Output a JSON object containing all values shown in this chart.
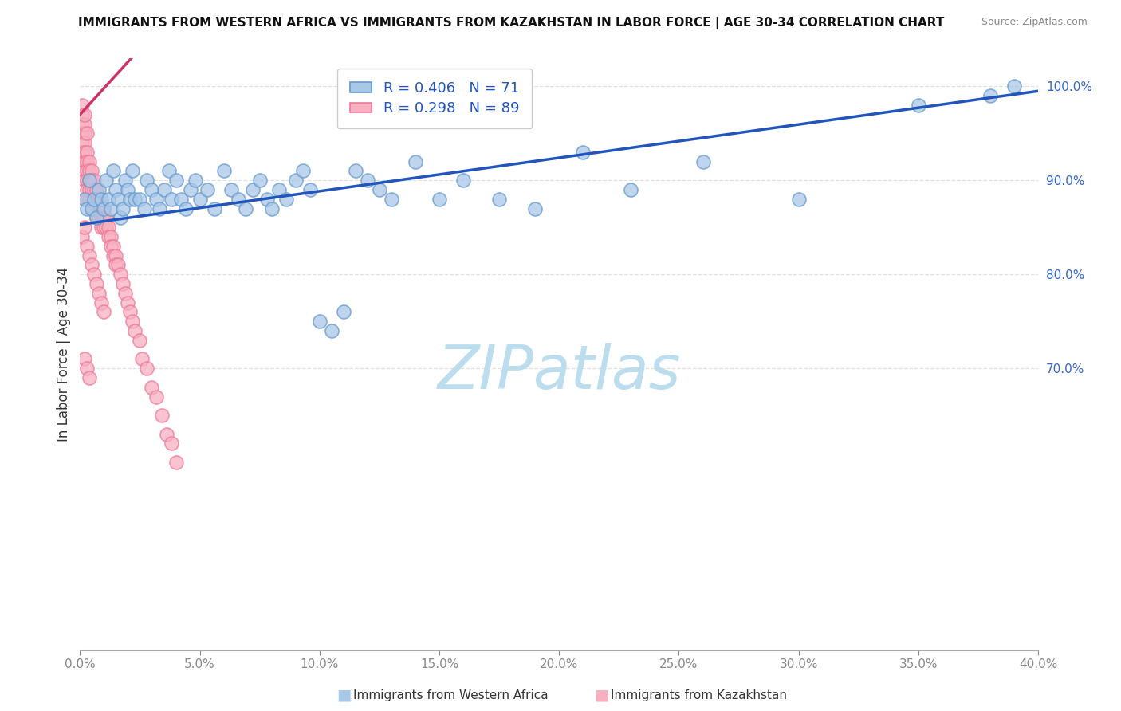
{
  "title": "IMMIGRANTS FROM WESTERN AFRICA VS IMMIGRANTS FROM KAZAKHSTAN IN LABOR FORCE | AGE 30-34 CORRELATION CHART",
  "source": "Source: ZipAtlas.com",
  "r_blue": 0.406,
  "n_blue": 71,
  "r_pink": 0.298,
  "n_pink": 89,
  "blue_scatter_color": "#A8C8E8",
  "blue_edge_color": "#6699CC",
  "pink_scatter_color": "#F8B0C0",
  "pink_edge_color": "#EE7799",
  "trend_blue_color": "#2255BB",
  "trend_pink_color": "#CC3366",
  "watermark_text": "ZIPatlas",
  "watermark_color": "#BBDDEE",
  "legend_label_blue": "Immigrants from Western Africa",
  "legend_label_pink": "Immigrants from Kazakhstan",
  "ylabel": "In Labor Force | Age 30-34",
  "xlim": [
    0.0,
    0.4
  ],
  "ylim": [
    0.4,
    1.03
  ],
  "yticks": [
    1.0,
    0.9,
    0.8,
    0.7
  ],
  "ytick_labels": [
    "100.0%",
    "90.0%",
    "80.0%",
    "70.0%"
  ],
  "xticks": [
    0.0,
    0.05,
    0.1,
    0.15,
    0.2,
    0.25,
    0.3,
    0.35,
    0.4
  ],
  "xtick_labels": [
    "0.0%",
    "5.0%",
    "10.0%",
    "15.0%",
    "20.0%",
    "25.0%",
    "30.0%",
    "35.0%",
    "40.0%"
  ],
  "grid_color": "#DDDDDD",
  "title_fontsize": 11,
  "tick_fontsize": 11,
  "legend_fontsize": 13,
  "watermark_fontsize": 55,
  "blue_x": [
    0.002,
    0.003,
    0.004,
    0.005,
    0.006,
    0.007,
    0.008,
    0.009,
    0.01,
    0.011,
    0.012,
    0.013,
    0.014,
    0.015,
    0.016,
    0.017,
    0.018,
    0.019,
    0.02,
    0.021,
    0.022,
    0.023,
    0.025,
    0.027,
    0.028,
    0.03,
    0.032,
    0.033,
    0.035,
    0.037,
    0.038,
    0.04,
    0.042,
    0.044,
    0.046,
    0.048,
    0.05,
    0.053,
    0.056,
    0.06,
    0.063,
    0.066,
    0.069,
    0.072,
    0.075,
    0.078,
    0.08,
    0.083,
    0.086,
    0.09,
    0.093,
    0.096,
    0.1,
    0.105,
    0.11,
    0.115,
    0.12,
    0.125,
    0.13,
    0.14,
    0.15,
    0.16,
    0.175,
    0.19,
    0.21,
    0.23,
    0.26,
    0.3,
    0.35,
    0.38,
    0.39
  ],
  "blue_y": [
    0.88,
    0.87,
    0.9,
    0.87,
    0.88,
    0.86,
    0.89,
    0.88,
    0.87,
    0.9,
    0.88,
    0.87,
    0.91,
    0.89,
    0.88,
    0.86,
    0.87,
    0.9,
    0.89,
    0.88,
    0.91,
    0.88,
    0.88,
    0.87,
    0.9,
    0.89,
    0.88,
    0.87,
    0.89,
    0.91,
    0.88,
    0.9,
    0.88,
    0.87,
    0.89,
    0.9,
    0.88,
    0.89,
    0.87,
    0.91,
    0.89,
    0.88,
    0.87,
    0.89,
    0.9,
    0.88,
    0.87,
    0.89,
    0.88,
    0.9,
    0.91,
    0.89,
    0.75,
    0.74,
    0.76,
    0.91,
    0.9,
    0.89,
    0.88,
    0.92,
    0.88,
    0.9,
    0.88,
    0.87,
    0.93,
    0.89,
    0.92,
    0.88,
    0.98,
    0.99,
    1.0
  ],
  "pink_x": [
    0.001,
    0.001,
    0.001,
    0.001,
    0.001,
    0.001,
    0.001,
    0.002,
    0.002,
    0.002,
    0.002,
    0.002,
    0.002,
    0.002,
    0.002,
    0.003,
    0.003,
    0.003,
    0.003,
    0.003,
    0.003,
    0.003,
    0.004,
    0.004,
    0.004,
    0.004,
    0.004,
    0.005,
    0.005,
    0.005,
    0.005,
    0.005,
    0.006,
    0.006,
    0.006,
    0.006,
    0.007,
    0.007,
    0.007,
    0.007,
    0.008,
    0.008,
    0.008,
    0.009,
    0.009,
    0.009,
    0.01,
    0.01,
    0.01,
    0.011,
    0.011,
    0.012,
    0.012,
    0.013,
    0.013,
    0.014,
    0.014,
    0.015,
    0.015,
    0.016,
    0.017,
    0.018,
    0.019,
    0.02,
    0.021,
    0.022,
    0.023,
    0.025,
    0.026,
    0.028,
    0.03,
    0.032,
    0.034,
    0.036,
    0.038,
    0.04,
    0.001,
    0.002,
    0.003,
    0.004,
    0.005,
    0.006,
    0.007,
    0.008,
    0.009,
    0.01,
    0.002,
    0.003,
    0.004
  ],
  "pink_y": [
    0.97,
    0.96,
    0.95,
    0.94,
    0.93,
    0.92,
    0.98,
    0.95,
    0.94,
    0.93,
    0.92,
    0.96,
    0.91,
    0.9,
    0.97,
    0.93,
    0.92,
    0.91,
    0.9,
    0.89,
    0.95,
    0.88,
    0.92,
    0.91,
    0.9,
    0.89,
    0.88,
    0.91,
    0.9,
    0.89,
    0.88,
    0.87,
    0.9,
    0.89,
    0.88,
    0.87,
    0.89,
    0.88,
    0.87,
    0.86,
    0.88,
    0.87,
    0.86,
    0.87,
    0.86,
    0.85,
    0.87,
    0.86,
    0.85,
    0.86,
    0.85,
    0.85,
    0.84,
    0.84,
    0.83,
    0.83,
    0.82,
    0.82,
    0.81,
    0.81,
    0.8,
    0.79,
    0.78,
    0.77,
    0.76,
    0.75,
    0.74,
    0.73,
    0.71,
    0.7,
    0.68,
    0.67,
    0.65,
    0.63,
    0.62,
    0.6,
    0.84,
    0.85,
    0.83,
    0.82,
    0.81,
    0.8,
    0.79,
    0.78,
    0.77,
    0.76,
    0.71,
    0.7,
    0.69
  ],
  "pink_trend_x0": 0.0,
  "pink_trend_x1": 0.025,
  "pink_trend_y0": 0.97,
  "pink_trend_y1": 1.04,
  "blue_trend_x0": 0.0,
  "blue_trend_x1": 0.4,
  "blue_trend_y0": 0.853,
  "blue_trend_y1": 0.995
}
